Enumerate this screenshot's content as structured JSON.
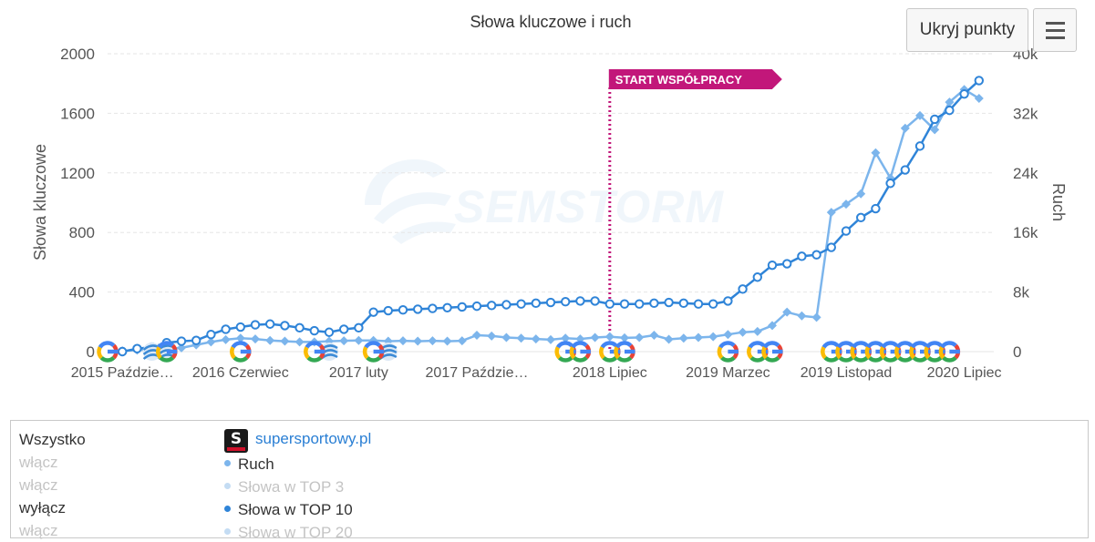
{
  "chart_data": {
    "type": "line",
    "title": "Słowa kluczowe i ruch",
    "y_left": {
      "label": "Słowa kluczowe",
      "min": 0,
      "max": 2000,
      "ticks": [
        "0",
        "400",
        "800",
        "1200",
        "1600",
        "2000"
      ]
    },
    "y_right": {
      "label": "Ruch",
      "min": 0,
      "max": 40000,
      "ticks": [
        "0",
        "8k",
        "16k",
        "24k",
        "32k",
        "40k"
      ]
    },
    "x_range": [
      "2015-09",
      "2020-09"
    ],
    "x_tick_labels": [
      {
        "date": "2015-10",
        "label": "2015 Paździe…"
      },
      {
        "date": "2016-06",
        "label": "2016 Czerwiec"
      },
      {
        "date": "2017-02",
        "label": "2017 luty"
      },
      {
        "date": "2017-10",
        "label": "2017 Paździe…"
      },
      {
        "date": "2018-07",
        "label": "2018 Lipiec"
      },
      {
        "date": "2019-03",
        "label": "2019 Marzec"
      },
      {
        "date": "2019-11",
        "label": "2019 Listopad"
      },
      {
        "date": "2020-07",
        "label": "2020 Lipiec"
      }
    ],
    "grid": true,
    "series": [
      {
        "name": "Ruch",
        "axis": "right",
        "color": "#7cb5ec",
        "marker": "diamond",
        "x": [
          "2015-10",
          "2015-11",
          "2015-12",
          "2016-01",
          "2016-02",
          "2016-03",
          "2016-04",
          "2016-05",
          "2016-06",
          "2016-07",
          "2016-08",
          "2016-09",
          "2016-10",
          "2016-11",
          "2016-12",
          "2017-01",
          "2017-02",
          "2017-03",
          "2017-04",
          "2017-05",
          "2017-06",
          "2017-07",
          "2017-08",
          "2017-09",
          "2017-10",
          "2017-11",
          "2017-12",
          "2018-01",
          "2018-02",
          "2018-03",
          "2018-04",
          "2018-05",
          "2018-06",
          "2018-07",
          "2018-08",
          "2018-09",
          "2018-10",
          "2018-11",
          "2018-12",
          "2019-01",
          "2019-02",
          "2019-03",
          "2019-04",
          "2019-05",
          "2019-06",
          "2019-07",
          "2019-08",
          "2019-09",
          "2019-10",
          "2019-11",
          "2019-12",
          "2020-01",
          "2020-02",
          "2020-03",
          "2020-04",
          "2020-05",
          "2020-06",
          "2020-07",
          "2020-08"
        ],
        "values": [
          100,
          200,
          300,
          400,
          500,
          900,
          1300,
          1600,
          1800,
          1700,
          1500,
          1400,
          1300,
          1300,
          1400,
          1450,
          1500,
          1500,
          1400,
          1450,
          1400,
          1450,
          1400,
          1450,
          2200,
          2100,
          1900,
          1800,
          1700,
          1600,
          1800,
          1700,
          1900,
          2000,
          1850,
          1900,
          2200,
          1650,
          1800,
          1900,
          2000,
          2300,
          2600,
          2700,
          3500,
          5300,
          4800,
          4600,
          18700,
          19800,
          21200,
          26700,
          23300,
          30000,
          31700,
          29800,
          33500,
          35200,
          34000
        ]
      },
      {
        "name": "Słowa w TOP 10",
        "axis": "left",
        "color": "#2f84d8",
        "marker": "circle",
        "x": [
          "2015-10",
          "2015-11",
          "2015-12",
          "2016-01",
          "2016-02",
          "2016-03",
          "2016-04",
          "2016-05",
          "2016-06",
          "2016-07",
          "2016-08",
          "2016-09",
          "2016-10",
          "2016-11",
          "2016-12",
          "2017-01",
          "2017-02",
          "2017-03",
          "2017-04",
          "2017-05",
          "2017-06",
          "2017-07",
          "2017-08",
          "2017-09",
          "2017-10",
          "2017-11",
          "2017-12",
          "2018-01",
          "2018-02",
          "2018-03",
          "2018-04",
          "2018-05",
          "2018-06",
          "2018-07",
          "2018-08",
          "2018-09",
          "2018-10",
          "2018-11",
          "2018-12",
          "2019-01",
          "2019-02",
          "2019-03",
          "2019-04",
          "2019-05",
          "2019-06",
          "2019-07",
          "2019-08",
          "2019-09",
          "2019-10",
          "2019-11",
          "2019-12",
          "2020-01",
          "2020-02",
          "2020-03",
          "2020-04",
          "2020-05",
          "2020-06",
          "2020-07",
          "2020-08"
        ],
        "values": [
          0,
          20,
          30,
          60,
          70,
          75,
          115,
          150,
          165,
          180,
          185,
          175,
          160,
          140,
          130,
          150,
          160,
          265,
          275,
          280,
          285,
          290,
          295,
          300,
          305,
          310,
          315,
          320,
          325,
          330,
          335,
          340,
          340,
          320,
          320,
          320,
          325,
          330,
          325,
          320,
          320,
          340,
          420,
          500,
          580,
          590,
          640,
          650,
          700,
          810,
          900,
          960,
          1130,
          1220,
          1380,
          1560,
          1620,
          1730,
          1820
        ]
      }
    ],
    "annotation": {
      "date": "2018-07",
      "label": "START WSPÓŁPRACY",
      "color": "#c2177a"
    },
    "watermark": "SEMSTORM",
    "google_update_markers": [
      "2015-09",
      "2016-01",
      "2016-06",
      "2016-11",
      "2017-03",
      "2018-04",
      "2018-05",
      "2018-07",
      "2018-08",
      "2019-03",
      "2019-05",
      "2019-06",
      "2019-10",
      "2019-11",
      "2019-12",
      "2020-01",
      "2020-02",
      "2020-03",
      "2020-04",
      "2020-05",
      "2020-06"
    ],
    "other_update_markers": [
      "2015-12",
      "2016-01",
      "2016-12",
      "2017-04"
    ]
  },
  "controls": {
    "hide_points": "Ukryj punkty",
    "menu_icon": "hamburger-menu-icon"
  },
  "legend_panel": {
    "options": [
      {
        "label": "Wszystko",
        "active": true
      },
      {
        "label": "włącz",
        "active": false
      },
      {
        "label": "włącz",
        "active": false
      },
      {
        "label": "wyłącz",
        "active": true
      },
      {
        "label": "włącz",
        "active": false
      }
    ],
    "site": "supersportowy.pl",
    "items": [
      {
        "label": "Ruch",
        "color": "#7cb5ec",
        "active": true
      },
      {
        "label": "Słowa w TOP 3",
        "color": "#c4dcf3",
        "active": false
      },
      {
        "label": "Słowa w TOP 10",
        "color": "#2f84d8",
        "active": true
      },
      {
        "label": "Słowa w TOP 20",
        "color": "#c4dcf3",
        "active": false
      }
    ]
  }
}
